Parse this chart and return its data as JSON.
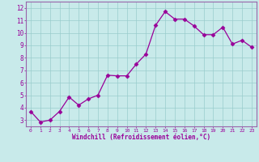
{
  "x": [
    0,
    1,
    2,
    3,
    4,
    5,
    6,
    7,
    8,
    9,
    10,
    11,
    12,
    13,
    14,
    15,
    16,
    17,
    18,
    19,
    20,
    21,
    22,
    23
  ],
  "y": [
    3.7,
    2.85,
    3.0,
    3.7,
    4.85,
    4.2,
    4.7,
    5.0,
    6.6,
    6.55,
    6.55,
    7.5,
    8.3,
    10.6,
    11.7,
    11.1,
    11.1,
    10.55,
    9.85,
    9.85,
    10.45,
    9.1,
    9.4,
    8.85
  ],
  "line_color": "#990099",
  "marker": "D",
  "marker_size": 2.5,
  "bg_color": "#c8eaea",
  "grid_color": "#99cccc",
  "xlabel": "Windchill (Refroidissement éolien,°C)",
  "xlim": [
    -0.5,
    23.5
  ],
  "ylim": [
    2.5,
    12.5
  ],
  "xticks": [
    0,
    1,
    2,
    3,
    4,
    5,
    6,
    7,
    8,
    9,
    10,
    11,
    12,
    13,
    14,
    15,
    16,
    17,
    18,
    19,
    20,
    21,
    22,
    23
  ],
  "yticks": [
    3,
    4,
    5,
    6,
    7,
    8,
    9,
    10,
    11,
    12
  ],
  "tick_label_color": "#990099",
  "axis_label_color": "#990099",
  "spine_color": "#9966aa"
}
